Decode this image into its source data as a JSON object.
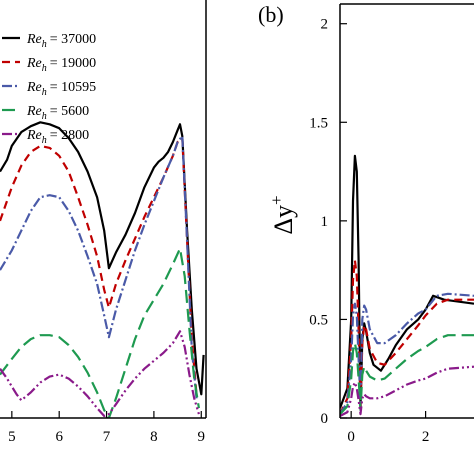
{
  "chart_data": [
    {
      "type": "line",
      "panel_label": "",
      "xlabel": "",
      "ylabel": "",
      "xlim": [
        4.75,
        9.1
      ],
      "ylim": [
        0,
        2.1
      ],
      "x_ticks": [
        5,
        6,
        7,
        8,
        9
      ],
      "legend_placement": "top-left",
      "series": [
        {
          "name": "Re_h = 37000",
          "legend_base": "Re",
          "legend_sub": "h",
          "legend_value": "= 37000",
          "color": "#000000",
          "dash": "",
          "x": [
            4.75,
            4.9,
            5.0,
            5.2,
            5.4,
            5.6,
            5.8,
            6.0,
            6.2,
            6.4,
            6.6,
            6.8,
            6.95,
            7.05,
            7.2,
            7.4,
            7.6,
            7.8,
            8.0,
            8.1,
            8.2,
            8.3,
            8.4,
            8.5,
            8.55,
            8.6,
            8.7,
            8.8,
            8.9,
            9.0,
            9.05
          ],
          "y": [
            1.25,
            1.31,
            1.38,
            1.45,
            1.48,
            1.5,
            1.49,
            1.47,
            1.42,
            1.35,
            1.25,
            1.12,
            0.95,
            0.76,
            0.84,
            0.93,
            1.04,
            1.17,
            1.27,
            1.3,
            1.32,
            1.35,
            1.4,
            1.46,
            1.49,
            1.43,
            0.95,
            0.55,
            0.25,
            0.12,
            0.32
          ]
        },
        {
          "name": "Re_h = 19000",
          "legend_base": "Re",
          "legend_sub": "h",
          "legend_value": "= 19000",
          "color": "#c00000",
          "dash": "8,5",
          "x": [
            4.75,
            5.0,
            5.2,
            5.4,
            5.6,
            5.8,
            6.0,
            6.2,
            6.4,
            6.6,
            6.8,
            6.95,
            7.05,
            7.2,
            7.4,
            7.6,
            7.8,
            8.0,
            8.2,
            8.4,
            8.5,
            8.6,
            8.7,
            8.8,
            8.9
          ],
          "y": [
            1.0,
            1.17,
            1.28,
            1.35,
            1.38,
            1.37,
            1.33,
            1.25,
            1.12,
            0.98,
            0.82,
            0.65,
            0.56,
            0.68,
            0.8,
            0.91,
            1.02,
            1.12,
            1.22,
            1.33,
            1.4,
            1.42,
            0.9,
            0.4,
            0.12
          ]
        },
        {
          "name": "Re_h = 10595",
          "legend_base": "Re",
          "legend_sub": "h",
          "legend_value": "= 10595",
          "color": "#4a5aa8",
          "dash": "10,3,2,3",
          "x": [
            4.75,
            5.0,
            5.2,
            5.4,
            5.6,
            5.8,
            6.0,
            6.2,
            6.4,
            6.6,
            6.8,
            6.95,
            7.05,
            7.2,
            7.4,
            7.6,
            7.8,
            8.0,
            8.2,
            8.4,
            8.5,
            8.6,
            8.7,
            8.8,
            8.9
          ],
          "y": [
            0.75,
            0.85,
            0.95,
            1.05,
            1.12,
            1.13,
            1.12,
            1.05,
            0.95,
            0.82,
            0.68,
            0.52,
            0.41,
            0.55,
            0.7,
            0.85,
            0.98,
            1.1,
            1.22,
            1.33,
            1.4,
            1.43,
            0.9,
            0.35,
            0.1
          ]
        },
        {
          "name": "Re_h = 5600",
          "legend_base": "Re",
          "legend_sub": "h",
          "legend_value": "= 5600",
          "color": "#1e9a50",
          "dash": "13,6",
          "x": [
            4.75,
            5.0,
            5.2,
            5.4,
            5.6,
            5.8,
            6.0,
            6.2,
            6.4,
            6.6,
            6.8,
            6.95,
            7.05,
            7.2,
            7.4,
            7.6,
            7.8,
            8.0,
            8.2,
            8.4,
            8.55,
            8.65,
            8.75,
            8.85,
            8.95
          ],
          "y": [
            0.22,
            0.3,
            0.36,
            0.4,
            0.42,
            0.42,
            0.41,
            0.37,
            0.31,
            0.23,
            0.13,
            0.04,
            0.0,
            0.1,
            0.25,
            0.4,
            0.52,
            0.6,
            0.68,
            0.78,
            0.86,
            0.72,
            0.45,
            0.2,
            0.05
          ]
        },
        {
          "name": "Re_h = 2800",
          "legend_base": "Re",
          "legend_sub": "h",
          "legend_value": "= 2800",
          "color": "#8a1a8a",
          "dash": "10,3,2,3,2,3",
          "x": [
            4.75,
            4.9,
            5.0,
            5.1,
            5.2,
            5.4,
            5.6,
            5.8,
            6.0,
            6.2,
            6.4,
            6.6,
            6.8,
            6.95,
            7.05,
            7.2,
            7.4,
            7.6,
            7.8,
            8.0,
            8.2,
            8.4,
            8.55,
            8.65,
            8.75,
            8.85,
            8.95
          ],
          "y": [
            0.25,
            0.2,
            0.16,
            0.12,
            0.09,
            0.13,
            0.18,
            0.21,
            0.22,
            0.2,
            0.16,
            0.11,
            0.05,
            0.01,
            0.02,
            0.07,
            0.14,
            0.2,
            0.25,
            0.29,
            0.33,
            0.38,
            0.44,
            0.36,
            0.22,
            0.1,
            0.02
          ]
        }
      ]
    },
    {
      "type": "line",
      "panel_label": "(b)",
      "xlabel": "",
      "ylabel": "Δy",
      "ylabel_sup": "+",
      "xlim": [
        -0.3,
        3.3
      ],
      "ylim": [
        0,
        2.1
      ],
      "x_ticks": [
        0,
        2
      ],
      "y_ticks": [
        0,
        0.5,
        1,
        1.5,
        2
      ],
      "y_tick_labels": [
        "0",
        "0.5",
        "1",
        "1.5",
        "2"
      ],
      "series": [
        {
          "color": "#000000",
          "dash": "",
          "x": [
            -0.3,
            -0.1,
            0.0,
            0.05,
            0.1,
            0.15,
            0.2,
            0.25,
            0.3,
            0.35,
            0.4,
            0.5,
            0.6,
            0.8,
            1.0,
            1.2,
            1.5,
            1.8,
            2.0,
            2.2,
            2.5,
            3.3
          ],
          "y": [
            0.05,
            0.15,
            0.5,
            1.1,
            1.33,
            1.25,
            0.8,
            0.05,
            0.4,
            0.48,
            0.44,
            0.33,
            0.27,
            0.24,
            0.3,
            0.37,
            0.45,
            0.5,
            0.55,
            0.62,
            0.6,
            0.58
          ]
        },
        {
          "color": "#c00000",
          "dash": "8,5",
          "x": [
            -0.3,
            -0.1,
            0.0,
            0.05,
            0.1,
            0.15,
            0.2,
            0.25,
            0.3,
            0.35,
            0.4,
            0.5,
            0.7,
            0.9,
            1.2,
            1.5,
            1.8,
            2.0,
            2.3,
            2.6,
            3.3
          ],
          "y": [
            0.02,
            0.1,
            0.4,
            0.7,
            0.8,
            0.72,
            0.45,
            0.05,
            0.38,
            0.47,
            0.45,
            0.35,
            0.28,
            0.27,
            0.33,
            0.4,
            0.47,
            0.52,
            0.58,
            0.6,
            0.6
          ]
        },
        {
          "color": "#4a5aa8",
          "dash": "10,3,2,3",
          "x": [
            -0.3,
            -0.1,
            0.0,
            0.05,
            0.1,
            0.15,
            0.2,
            0.25,
            0.3,
            0.35,
            0.4,
            0.5,
            0.7,
            0.9,
            1.2,
            1.5,
            1.8,
            2.0,
            2.3,
            2.6,
            3.3
          ],
          "y": [
            0.02,
            0.08,
            0.3,
            0.52,
            0.58,
            0.52,
            0.3,
            0.08,
            0.5,
            0.57,
            0.55,
            0.45,
            0.38,
            0.38,
            0.42,
            0.48,
            0.53,
            0.55,
            0.62,
            0.63,
            0.62
          ]
        },
        {
          "color": "#1e9a50",
          "dash": "13,6",
          "x": [
            -0.3,
            -0.1,
            0.0,
            0.05,
            0.1,
            0.15,
            0.2,
            0.25,
            0.3,
            0.35,
            0.4,
            0.5,
            0.7,
            0.9,
            1.2,
            1.5,
            1.8,
            2.0,
            2.3,
            2.6,
            3.3
          ],
          "y": [
            0.02,
            0.06,
            0.2,
            0.34,
            0.38,
            0.33,
            0.2,
            0.04,
            0.22,
            0.26,
            0.24,
            0.21,
            0.19,
            0.2,
            0.25,
            0.3,
            0.34,
            0.36,
            0.4,
            0.42,
            0.42
          ]
        },
        {
          "color": "#8a1a8a",
          "dash": "10,3,2,3,2,3",
          "x": [
            -0.3,
            -0.1,
            0.0,
            0.05,
            0.1,
            0.15,
            0.2,
            0.25,
            0.3,
            0.35,
            0.4,
            0.5,
            0.7,
            0.9,
            1.2,
            1.5,
            1.8,
            2.0,
            2.3,
            2.6,
            3.3
          ],
          "y": [
            0.01,
            0.03,
            0.1,
            0.16,
            0.18,
            0.15,
            0.09,
            0.02,
            0.1,
            0.12,
            0.11,
            0.1,
            0.1,
            0.11,
            0.14,
            0.17,
            0.19,
            0.2,
            0.23,
            0.25,
            0.26
          ]
        }
      ]
    }
  ]
}
